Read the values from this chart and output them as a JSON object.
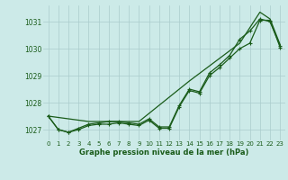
{
  "title": "Graphe pression niveau de la mer (hPa)",
  "background_color": "#cceae8",
  "grid_color": "#aacccc",
  "line_color": "#1a5c1a",
  "xlim": [
    -0.5,
    23.5
  ],
  "ylim": [
    1026.6,
    1031.6
  ],
  "yticks": [
    1027,
    1028,
    1029,
    1030,
    1031
  ],
  "xticks": [
    0,
    1,
    2,
    3,
    4,
    5,
    6,
    7,
    8,
    9,
    10,
    11,
    12,
    13,
    14,
    15,
    16,
    17,
    18,
    19,
    20,
    21,
    22,
    23
  ],
  "series1_x": [
    0,
    1,
    2,
    3,
    4,
    5,
    6,
    7,
    8,
    9,
    10,
    11,
    12,
    13,
    14,
    15,
    16,
    17,
    18,
    19,
    20,
    21,
    22,
    23
  ],
  "series1_y": [
    1027.5,
    1027.0,
    1026.9,
    1027.0,
    1027.15,
    1027.2,
    1027.2,
    1027.25,
    1027.2,
    1027.15,
    1027.35,
    1027.05,
    1027.05,
    1027.85,
    1028.45,
    1028.35,
    1029.0,
    1029.3,
    1029.65,
    1030.0,
    1030.2,
    1031.05,
    1031.05,
    1030.05
  ],
  "series2_x": [
    0,
    1,
    2,
    3,
    4,
    5,
    6,
    7,
    8,
    9,
    10,
    11,
    12,
    13,
    14,
    15,
    16,
    17,
    18,
    19,
    20,
    21,
    22,
    23
  ],
  "series2_y": [
    1027.5,
    1027.0,
    1026.9,
    1027.05,
    1027.2,
    1027.25,
    1027.3,
    1027.3,
    1027.25,
    1027.2,
    1027.4,
    1027.1,
    1027.1,
    1027.9,
    1028.5,
    1028.4,
    1029.1,
    1029.4,
    1029.75,
    1030.35,
    1030.65,
    1031.1,
    1031.0,
    1030.1
  ],
  "series3_x": [
    0,
    4,
    9,
    14,
    19,
    21,
    22,
    23
  ],
  "series3_y": [
    1027.5,
    1027.3,
    1027.3,
    1028.8,
    1030.2,
    1031.35,
    1031.1,
    1030.15
  ],
  "xlabel_fontsize": 6.0,
  "tick_fontsize": 5.0
}
